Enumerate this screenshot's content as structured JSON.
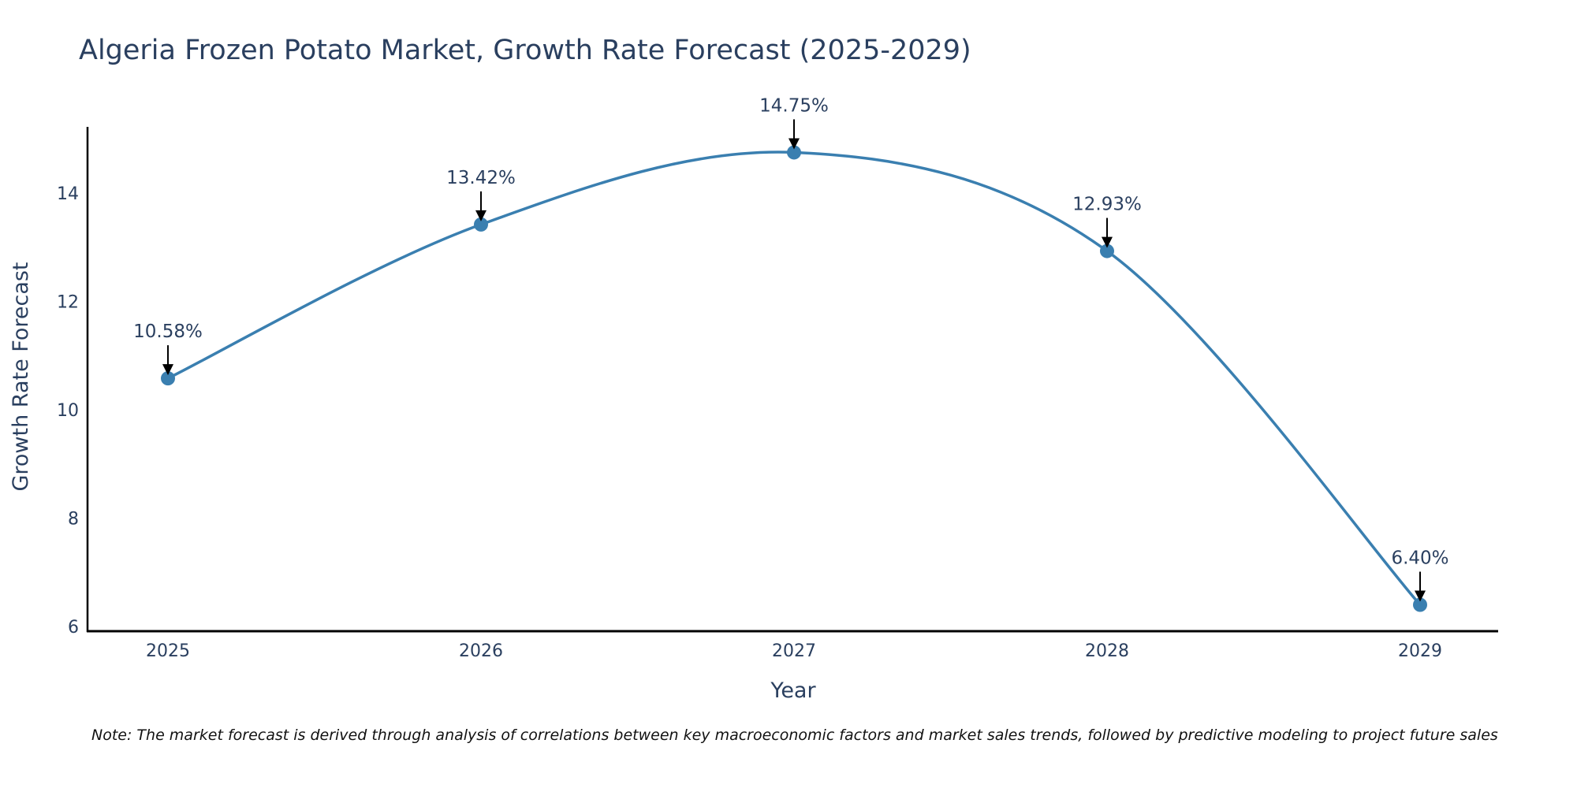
{
  "chart_data": {
    "type": "line",
    "title": "Algeria Frozen Potato Market, Growth Rate Forecast (2025-2029)",
    "xlabel": "Year",
    "ylabel": "Growth Rate Forecast",
    "categories": [
      "2025",
      "2026",
      "2027",
      "2028",
      "2029"
    ],
    "values": [
      10.58,
      13.42,
      14.75,
      12.93,
      6.4
    ],
    "data_labels": [
      "10.58%",
      "13.42%",
      "14.75%",
      "12.93%",
      "6.40%"
    ],
    "yticks": [
      6,
      8,
      10,
      12,
      14
    ],
    "ytick_labels": [
      "6",
      "8",
      "10",
      "12",
      "14"
    ],
    "ylim": [
      5.9,
      15.2
    ],
    "grid": false,
    "line_color": "#3a7fb0",
    "note": "Note: The market forecast is derived through analysis of correlations between key macroeconomic factors and market sales trends, followed by predictive modeling to project future sales"
  }
}
